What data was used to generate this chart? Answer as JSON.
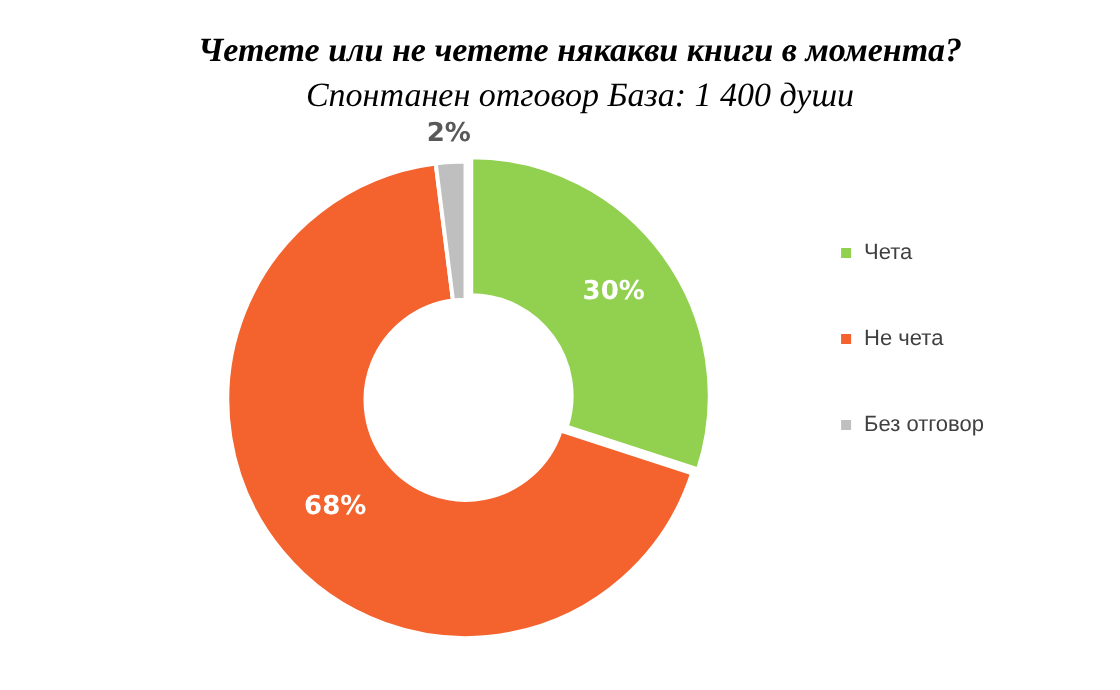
{
  "chart_data": {
    "type": "donut",
    "title": "Четете или не четете някакви книги в момента?",
    "subtitle": "Спонтанен отговор База: 1 400 души",
    "categories": [
      "Чета",
      "Не чета",
      "Без отговор"
    ],
    "values": [
      30,
      68,
      2
    ],
    "colors": [
      "#92d050",
      "#f4632e",
      "#bfbfbf"
    ],
    "value_labels": [
      "30%",
      "68%",
      "2%"
    ],
    "legend": "right"
  }
}
